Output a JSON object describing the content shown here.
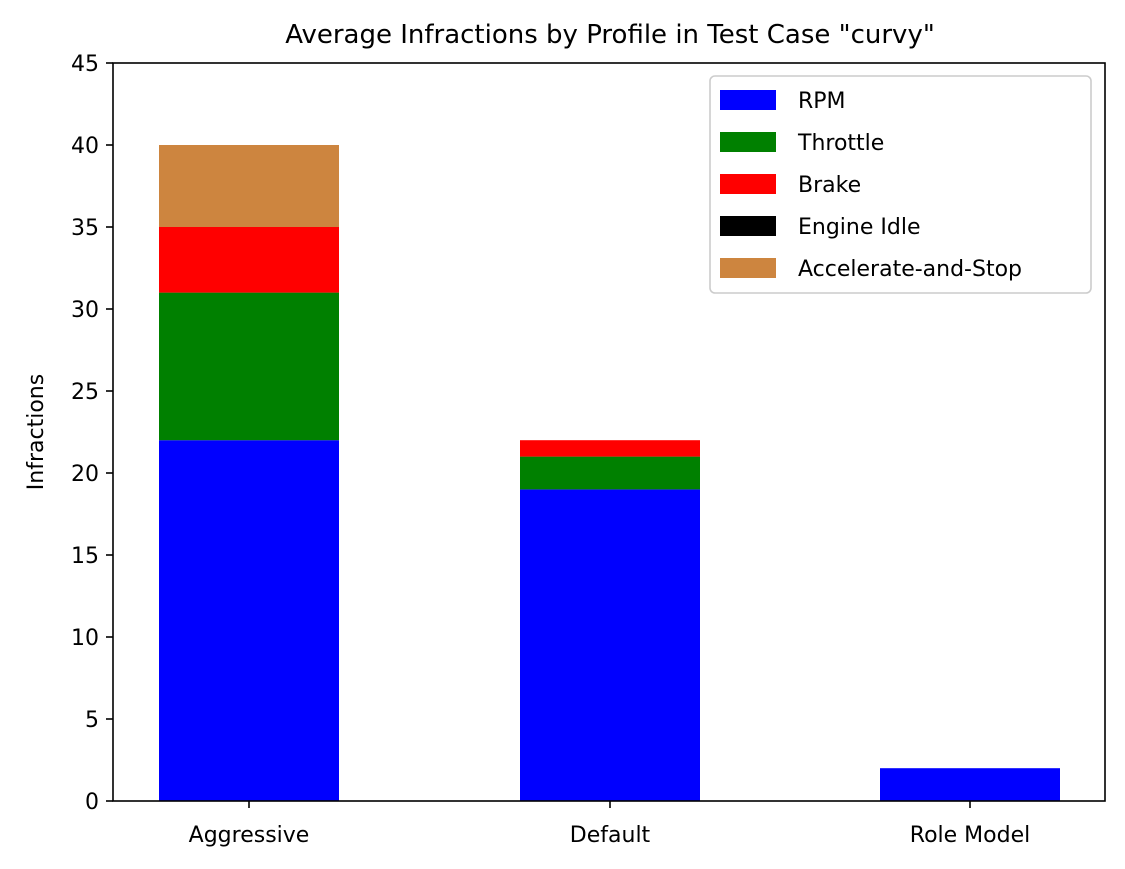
{
  "chart_data": {
    "type": "bar",
    "stacked": true,
    "title": "Average Infractions by Profile in Test Case \"curvy\"",
    "xlabel": "",
    "ylabel": "Infractions",
    "categories": [
      "Aggressive",
      "Default",
      "Role Model"
    ],
    "ylim": [
      0,
      45
    ],
    "yticks": [
      0,
      5,
      10,
      15,
      20,
      25,
      30,
      35,
      40,
      45
    ],
    "grid": false,
    "legend_position": "top-right",
    "series": [
      {
        "name": "RPM",
        "color": "#0000ff",
        "values": [
          22,
          19,
          2
        ]
      },
      {
        "name": "Throttle",
        "color": "#008000",
        "values": [
          9,
          2,
          0
        ]
      },
      {
        "name": "Brake",
        "color": "#ff0000",
        "values": [
          4,
          1,
          0
        ]
      },
      {
        "name": "Engine Idle",
        "color": "#000000",
        "values": [
          0,
          0,
          0
        ]
      },
      {
        "name": "Accelerate-and-Stop",
        "color": "#cd853f",
        "values": [
          5,
          0,
          0
        ]
      }
    ]
  }
}
